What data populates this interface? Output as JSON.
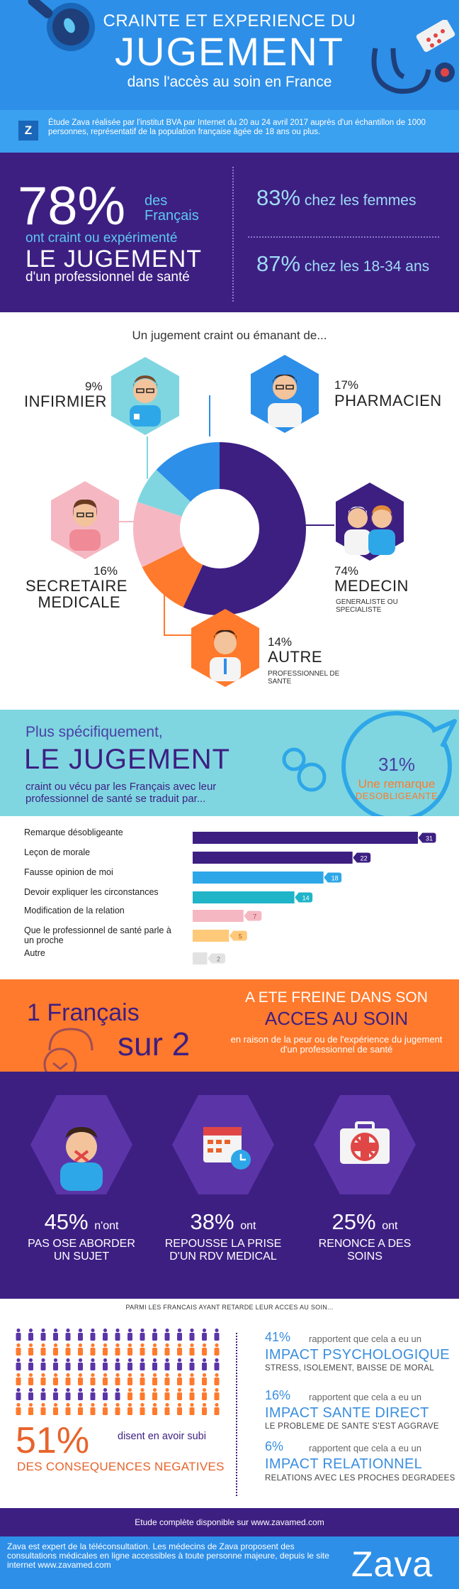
{
  "header": {
    "line1": "CRAINTE ET EXPERIENCE DU",
    "line2": "JUGEMENT",
    "line3": "dans l'accès au soin en France"
  },
  "study": {
    "logo_letter": "Z",
    "text": "Étude Zava réalisée par l'institut BVA par Internet du 20 au 24 avril 2017 auprès d'un échantillon de 1000 personnes, représentatif de la population française âgée de 18 ans ou plus."
  },
  "stat": {
    "main_pct": "78%",
    "des_francais": "des Français",
    "ont_craint": "ont craint ou expérimenté",
    "le_jugement": "LE JUGEMENT",
    "dun_pro": "d'un professionnel de santé",
    "femmes_pct": "83%",
    "femmes_label": "chez les femmes",
    "jeunes_pct": "87%",
    "jeunes_label": "chez les 18-34 ans"
  },
  "donut": {
    "title": "Un jugement craint ou émanant de...",
    "slices": [
      {
        "name": "MEDECIN",
        "pct": "74%",
        "value": 74,
        "color": "#3d1f82",
        "sub": "GENERALISTE OU SPECIALISTE"
      },
      {
        "name": "AUTRE",
        "pct": "14%",
        "value": 14,
        "color": "#ff7a2c",
        "sub": "PROFESSIONNEL DE SANTE"
      },
      {
        "name": "SECRETAIRE MEDICALE",
        "pct": "16%",
        "value": 16,
        "color": "#f5b8c2",
        "sub": ""
      },
      {
        "name": "INFIRMIER",
        "pct": "9%",
        "value": 9,
        "color": "#7fd6e0",
        "sub": ""
      },
      {
        "name": "PHARMACIEN",
        "pct": "17%",
        "value": 17,
        "color": "#2d8fe8",
        "sub": ""
      }
    ],
    "infirmier_pct": "9%",
    "infirmier_name": "INFIRMIER",
    "pharmacien_pct": "17%",
    "pharmacien_name": "PHARMACIEN",
    "secretaire_pct": "16%",
    "secretaire_name1": "SECRETAIRE",
    "secretaire_name2": "MEDICALE",
    "medecin_pct": "74%",
    "medecin_name": "MEDECIN",
    "medecin_sub1": "GENERALISTE OU",
    "medecin_sub2": "SPECIALISTE",
    "autre_pct": "14%",
    "autre_name": "AUTRE",
    "autre_sub1": "PROFESSIONNEL DE",
    "autre_sub2": "SANTE"
  },
  "specifically": {
    "line1": "Plus spécifiquement,",
    "line2": "LE JUGEMENT",
    "line3": "craint ou vécu par les Français avec leur professionnel de santé se traduit par...",
    "bubble_pct": "31%",
    "bubble_l1": "Une remarque",
    "bubble_l2": "DESOBLIGEANTE"
  },
  "chart_data": {
    "type": "bar",
    "orientation": "horizontal",
    "categories": [
      "Remarque désobligeante",
      "Leçon de morale",
      "Fausse opinion de moi",
      "Devoir expliquer les circonstances",
      "Modification de la relation",
      "Que le professionnel de santé parle à un proche",
      "Autre"
    ],
    "values": [
      31,
      22,
      18,
      14,
      7,
      5,
      2
    ],
    "colors": [
      "#3d1f82",
      "#3d1f82",
      "#2ea7e8",
      "#1fb4c8",
      "#f5b8c2",
      "#ffc97a",
      "#e2e2e2"
    ],
    "badge_colors": [
      "#3d1f82",
      "#3d1f82",
      "#2ea7e8",
      "#1fb4c8",
      "#f5b8c2",
      "#ffc97a",
      "#e2e2e2"
    ],
    "badge_text_colors": [
      "#ffffff",
      "#ffffff",
      "#ffffff",
      "#ffffff",
      "#a05060",
      "#a06020",
      "#777777"
    ],
    "xlim": [
      0,
      31
    ]
  },
  "frein": {
    "line1": "1 Français",
    "line2": "sur 2",
    "line3": "A ETE FREINE DANS SON",
    "line4": "ACCES AU SOIN",
    "line5": "en raison de la peur ou de l'expérience du jugement d'un professionnel de santé"
  },
  "hex": [
    {
      "pct": "45%",
      "suffix": "n'ont",
      "l1": "PAS OSE ABORDER",
      "l2": "UN SUJET",
      "icon": "silenced-person-icon"
    },
    {
      "pct": "38%",
      "suffix": "ont",
      "l1": "REPOUSSE LA PRISE",
      "l2": "D'UN RDV MEDICAL",
      "icon": "calendar-clock-icon"
    },
    {
      "pct": "25%",
      "suffix": "ont",
      "l1": "RENONCE A DES",
      "l2": "SOINS",
      "icon": "cancelled-medical-kit-icon"
    }
  ],
  "people": {
    "title": "PARMI LES FRANCAIS AYANT RETARDE LEUR ACCES AU SOIN...",
    "pct": "51%",
    "disent": "disent en avoir subi",
    "consequences": "DES CONSEQUENCES NEGATIVES",
    "impacts": [
      {
        "pct": "41%",
        "report": "rapportent que cela a eu un",
        "title": "IMPACT PSYCHOLOGIQUE",
        "sub": "STRESS, ISOLEMENT, BAISSE DE MORAL"
      },
      {
        "pct": "16%",
        "report": "rapportent que cela a eu un",
        "title": "IMPACT SANTE DIRECT",
        "sub": "LE PROBLEME DE SANTE S'EST AGGRAVE"
      },
      {
        "pct": "6%",
        "report": "rapportent que cela a eu un",
        "title": "IMPACT RELATIONNEL",
        "sub": "RELATIONS AVEC LES PROCHES  DEGRADEES"
      }
    ]
  },
  "footer": {
    "etude": "Etude complète disponible sur www.zavamed.com",
    "about": "Zava est expert de la téléconsultation. Les médecins de Zava proposent des consultations médicales en ligne accessibles à toute personne majeure, depuis le site internet www.zavamed.com",
    "logo": "Zava"
  }
}
